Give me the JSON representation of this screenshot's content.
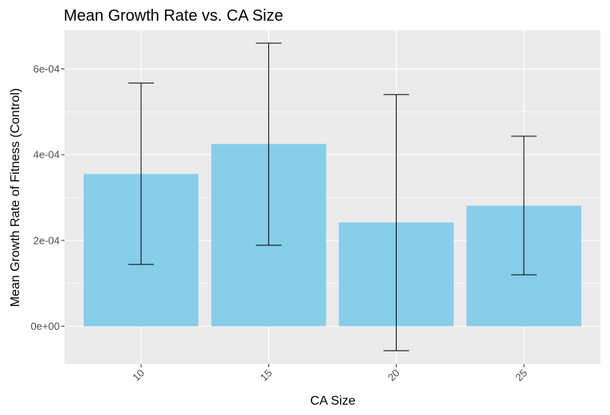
{
  "chart_data": {
    "type": "bar",
    "title": "Mean Growth Rate vs. CA Size",
    "xlabel": "CA Size",
    "ylabel": "Mean Growth Rate of Fitness (Control)",
    "categories": [
      "10",
      "15",
      "20",
      "25"
    ],
    "values": [
      0.000355,
      0.000425,
      0.000242,
      0.000281
    ],
    "error_low": [
      0.000144,
      0.000189,
      -5.7e-05,
      0.00012
    ],
    "error_high": [
      0.000567,
      0.00066,
      0.00054,
      0.000443
    ],
    "ylim": [
      -8.8e-05,
      0.00069
    ],
    "yticks": [
      0,
      0.0002,
      0.0004,
      0.0006
    ],
    "ytick_labels": [
      "0e+00",
      "2e-04",
      "4e-04",
      "6e-04"
    ],
    "grid": true,
    "legend": "none",
    "bar_color": "#87CEEB",
    "panel_color": "#EBEBEB",
    "grid_color": "#FFFFFF",
    "errorbar_color": "#000000"
  }
}
